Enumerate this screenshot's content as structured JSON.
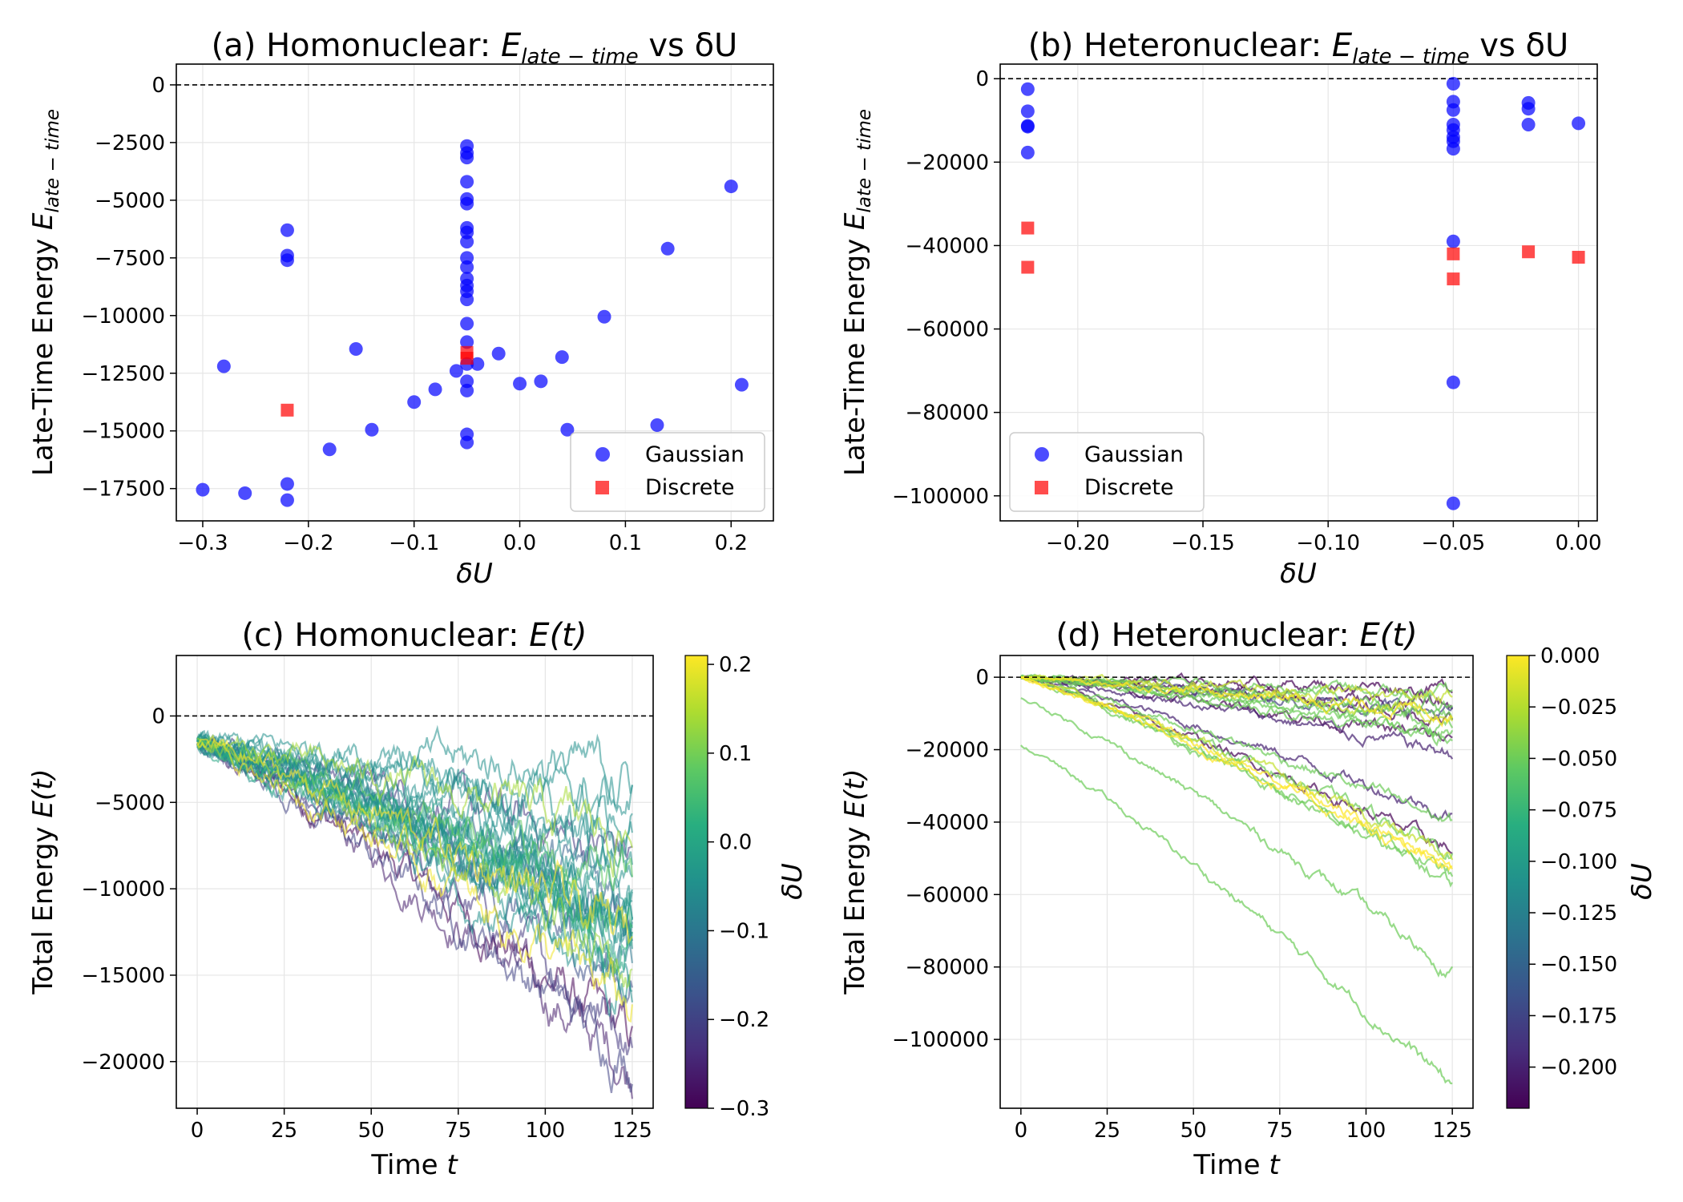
{
  "panels": [
    {
      "id": "a",
      "title_plain": "(a) Homonuclear: ",
      "title_sym": "E",
      "title_sub": "late − time",
      "title_tail": " vs δU",
      "xlabel": "δU",
      "ylabel_plain": "Late-Time Energy ",
      "ylabel_sym": "E",
      "ylabel_sub": "late − time",
      "xlim": [
        -0.325,
        0.24
      ],
      "ylim": [
        -18900,
        900
      ],
      "xticks": [
        -0.3,
        -0.2,
        -0.1,
        0.0,
        0.1,
        0.2
      ],
      "xtick_labels": [
        "−0.3",
        "−0.2",
        "−0.1",
        "0.0",
        "0.1",
        "0.2"
      ],
      "yticks": [
        0,
        -2500,
        -5000,
        -7500,
        -10000,
        -12500,
        -15000,
        -17500
      ],
      "ytick_labels": [
        "0",
        "−2500",
        "−5000",
        "−7500",
        "−10000",
        "−12500",
        "−15000",
        "−17500"
      ],
      "legend": [
        "Gaussian",
        "Discrete"
      ],
      "legend_position": "lower-right"
    },
    {
      "id": "b",
      "title_plain": "(b) Heteronuclear: ",
      "title_sym": "E",
      "title_sub": "late − time",
      "title_tail": " vs δU",
      "xlabel": "δU",
      "ylabel_plain": "Late-Time Energy ",
      "ylabel_sym": "E",
      "ylabel_sub": "late − time",
      "xlim": [
        -0.231,
        0.0075
      ],
      "ylim": [
        -106000,
        3500
      ],
      "xticks": [
        -0.2,
        -0.15,
        -0.1,
        -0.05,
        0.0
      ],
      "xtick_labels": [
        "−0.20",
        "−0.15",
        "−0.10",
        "−0.05",
        "0.00"
      ],
      "yticks": [
        0,
        -20000,
        -40000,
        -60000,
        -80000,
        -100000
      ],
      "ytick_labels": [
        "0",
        "−20000",
        "−40000",
        "−60000",
        "−80000",
        "−100000"
      ],
      "legend": [
        "Gaussian",
        "Discrete"
      ],
      "legend_position": "lower-left"
    },
    {
      "id": "c",
      "title_plain": "(c) Homonuclear: ",
      "title_sym": "E(t)",
      "xlabel_plain": "Time ",
      "xlabel_sym": "t",
      "ylabel_plain": "Total Energy ",
      "ylabel_sym": "E(t)",
      "xlim": [
        -6,
        131
      ],
      "ylim": [
        -22700,
        3500
      ],
      "xticks": [
        0,
        25,
        50,
        75,
        100,
        125
      ],
      "xtick_labels": [
        "0",
        "25",
        "50",
        "75",
        "100",
        "125"
      ],
      "yticks": [
        0,
        -5000,
        -10000,
        -15000,
        -20000
      ],
      "ytick_labels": [
        "0",
        "−5000",
        "−10000",
        "−15000",
        "−20000"
      ],
      "colorbar_label": "δU",
      "colorbar_range": [
        -0.3,
        0.21
      ],
      "colorbar_ticks": [
        0.2,
        0.1,
        0.0,
        -0.1,
        -0.2,
        -0.3
      ],
      "colorbar_tick_labels": [
        "0.2",
        "0.1",
        "0.0",
        "−0.1",
        "−0.2",
        "−0.3"
      ]
    },
    {
      "id": "d",
      "title_plain": "(d) Heteronuclear: ",
      "title_sym": "E(t)",
      "xlabel_plain": "Time ",
      "xlabel_sym": "t",
      "ylabel_plain": "Total Energy ",
      "ylabel_sym": "E(t)",
      "xlim": [
        -6,
        131
      ],
      "ylim": [
        -119000,
        6000
      ],
      "xticks": [
        0,
        25,
        50,
        75,
        100,
        125
      ],
      "xtick_labels": [
        "0",
        "25",
        "50",
        "75",
        "100",
        "125"
      ],
      "yticks": [
        0,
        -20000,
        -40000,
        -60000,
        -80000,
        -100000
      ],
      "ytick_labels": [
        "0",
        "−20000",
        "−40000",
        "−60000",
        "−80000",
        "−100000"
      ],
      "colorbar_label": "δU",
      "colorbar_range": [
        -0.22,
        0.0
      ],
      "colorbar_ticks": [
        0.0,
        -0.025,
        -0.05,
        -0.075,
        -0.1,
        -0.125,
        -0.15,
        -0.175,
        -0.2
      ],
      "colorbar_tick_labels": [
        "0.000",
        "−0.025",
        "−0.050",
        "−0.075",
        "−0.100",
        "−0.125",
        "−0.150",
        "−0.175",
        "−0.200"
      ]
    }
  ],
  "colors": {
    "gaussian": "#0000ff",
    "discrete": "#ff0000",
    "zero_line": "#000000",
    "grid": "#e6e6e6"
  },
  "chart_data": [
    {
      "type": "scatter",
      "panel": "a",
      "title": "(a) Homonuclear: E_late-time vs δU",
      "xlabel": "δU",
      "ylabel": "Late-Time Energy E_late-time",
      "series": [
        {
          "name": "Gaussian",
          "points": [
            [
              -0.3,
              -17550
            ],
            [
              -0.28,
              -12200
            ],
            [
              -0.26,
              -17700
            ],
            [
              -0.22,
              -6300
            ],
            [
              -0.22,
              -7400
            ],
            [
              -0.22,
              -7600
            ],
            [
              -0.22,
              -17300
            ],
            [
              -0.22,
              -18000
            ],
            [
              -0.18,
              -15800
            ],
            [
              -0.155,
              -11450
            ],
            [
              -0.14,
              -14950
            ],
            [
              -0.1,
              -13750
            ],
            [
              -0.08,
              -13200
            ],
            [
              -0.06,
              -12400
            ],
            [
              -0.05,
              -2650
            ],
            [
              -0.05,
              -2950
            ],
            [
              -0.05,
              -3150
            ],
            [
              -0.05,
              -4200
            ],
            [
              -0.05,
              -4950
            ],
            [
              -0.05,
              -5150
            ],
            [
              -0.05,
              -6200
            ],
            [
              -0.05,
              -6400
            ],
            [
              -0.05,
              -6800
            ],
            [
              -0.05,
              -7500
            ],
            [
              -0.05,
              -7900
            ],
            [
              -0.05,
              -8400
            ],
            [
              -0.05,
              -8700
            ],
            [
              -0.05,
              -8950
            ],
            [
              -0.05,
              -9300
            ],
            [
              -0.05,
              -10350
            ],
            [
              -0.05,
              -11150
            ],
            [
              -0.05,
              -12100
            ],
            [
              -0.05,
              -12850
            ],
            [
              -0.05,
              -13250
            ],
            [
              -0.05,
              -15150
            ],
            [
              -0.05,
              -15500
            ],
            [
              -0.04,
              -12100
            ],
            [
              -0.02,
              -11650
            ],
            [
              0.0,
              -12950
            ],
            [
              0.02,
              -12850
            ],
            [
              0.04,
              -11800
            ],
            [
              0.045,
              -14950
            ],
            [
              0.08,
              -10050
            ],
            [
              0.13,
              -14750
            ],
            [
              0.14,
              -7100
            ],
            [
              0.2,
              -4400
            ],
            [
              0.21,
              -13000
            ]
          ]
        },
        {
          "name": "Discrete",
          "points": [
            [
              -0.22,
              -14100
            ],
            [
              -0.05,
              -11600
            ],
            [
              -0.05,
              -11850
            ]
          ]
        }
      ]
    },
    {
      "type": "scatter",
      "panel": "b",
      "title": "(b) Heteronuclear: E_late-time vs δU",
      "xlabel": "δU",
      "ylabel": "Late-Time Energy E_late-time",
      "series": [
        {
          "name": "Gaussian",
          "points": [
            [
              -0.22,
              -2500
            ],
            [
              -0.22,
              -7800
            ],
            [
              -0.22,
              -11300
            ],
            [
              -0.22,
              -11500
            ],
            [
              -0.22,
              -17700
            ],
            [
              -0.05,
              -1200
            ],
            [
              -0.05,
              -5500
            ],
            [
              -0.05,
              -7500
            ],
            [
              -0.05,
              -11000
            ],
            [
              -0.05,
              -12300
            ],
            [
              -0.05,
              -14000
            ],
            [
              -0.05,
              -15000
            ],
            [
              -0.05,
              -16800
            ],
            [
              -0.05,
              -39000
            ],
            [
              -0.05,
              -72800
            ],
            [
              -0.05,
              -101800
            ],
            [
              -0.02,
              -5800
            ],
            [
              -0.02,
              -7200
            ],
            [
              -0.02,
              -11000
            ],
            [
              0.0,
              -10700
            ]
          ]
        },
        {
          "name": "Discrete",
          "points": [
            [
              -0.22,
              -35800
            ],
            [
              -0.22,
              -45200
            ],
            [
              -0.05,
              -42000
            ],
            [
              -0.05,
              -48000
            ],
            [
              -0.02,
              -41500
            ],
            [
              0.0,
              -42800
            ]
          ]
        }
      ]
    },
    {
      "type": "line",
      "panel": "c",
      "title": "(c) Homonuclear: E(t)",
      "xlabel": "Time t",
      "ylabel": "Total Energy E(t)",
      "x_range": [
        0,
        125
      ],
      "color_by": "δU",
      "series": [
        {
          "du": -0.3,
          "end": -19000
        },
        {
          "du": -0.26,
          "end": -20500
        },
        {
          "du": -0.22,
          "end": -18000
        },
        {
          "du": -0.22,
          "end": -8000
        },
        {
          "du": -0.2,
          "end": -20000
        },
        {
          "du": -0.18,
          "end": -15500
        },
        {
          "du": -0.15,
          "end": -12000
        },
        {
          "du": -0.14,
          "end": -10500
        },
        {
          "du": -0.1,
          "end": -14000
        },
        {
          "du": -0.08,
          "end": -13000
        },
        {
          "du": -0.06,
          "end": -12500
        },
        {
          "du": -0.05,
          "end": -3500
        },
        {
          "du": -0.05,
          "end": -5000
        },
        {
          "du": -0.05,
          "end": -6500
        },
        {
          "du": -0.05,
          "end": -7500
        },
        {
          "du": -0.05,
          "end": -8500
        },
        {
          "du": -0.05,
          "end": -9500
        },
        {
          "du": -0.05,
          "end": -10500
        },
        {
          "du": -0.05,
          "end": -11500
        },
        {
          "du": -0.05,
          "end": -12500
        },
        {
          "du": -0.05,
          "end": -13500
        },
        {
          "du": -0.05,
          "end": -15000
        },
        {
          "du": -0.05,
          "end": -16500
        },
        {
          "du": -0.04,
          "end": -12000
        },
        {
          "du": -0.02,
          "end": -11500
        },
        {
          "du": 0.0,
          "end": -13000
        },
        {
          "du": 0.02,
          "end": -12800
        },
        {
          "du": 0.04,
          "end": -12000
        },
        {
          "du": 0.08,
          "end": -10000
        },
        {
          "du": 0.13,
          "end": -15000
        },
        {
          "du": 0.14,
          "end": -7000
        },
        {
          "du": 0.2,
          "end": -17000
        },
        {
          "du": 0.21,
          "end": -13000
        }
      ]
    },
    {
      "type": "line",
      "panel": "d",
      "title": "(d) Heteronuclear: E(t)",
      "xlabel": "Time t",
      "ylabel": "Total Energy E(t)",
      "x_range": [
        0,
        125
      ],
      "color_by": "δU",
      "series": [
        {
          "du": -0.22,
          "start": 0,
          "end": -3000
        },
        {
          "du": -0.22,
          "start": 0,
          "end": -8000
        },
        {
          "du": -0.22,
          "start": 0,
          "end": -11500
        },
        {
          "du": -0.22,
          "start": 0,
          "end": -17500
        },
        {
          "du": -0.22,
          "start": 0,
          "end": -48000
        },
        {
          "du": -0.2,
          "start": 0,
          "end": -21000
        },
        {
          "du": -0.2,
          "start": 0,
          "end": -38000
        },
        {
          "du": -0.18,
          "start": 0,
          "end": -10000
        },
        {
          "du": -0.05,
          "start": 0,
          "end": -5000
        },
        {
          "du": -0.05,
          "start": 0,
          "end": -8000
        },
        {
          "du": -0.05,
          "start": 0,
          "end": -11000
        },
        {
          "du": -0.05,
          "start": 0,
          "end": -13000
        },
        {
          "du": -0.05,
          "start": 0,
          "end": -15000
        },
        {
          "du": -0.05,
          "start": 0,
          "end": -17000
        },
        {
          "du": -0.05,
          "start": 0,
          "end": -40000
        },
        {
          "du": -0.05,
          "start": 0,
          "end": -48000
        },
        {
          "du": -0.05,
          "start": 0,
          "end": -55000
        },
        {
          "du": -0.05,
          "start": 0,
          "end": -57000
        },
        {
          "du": -0.05,
          "start": -6000,
          "end": -81000
        },
        {
          "du": -0.05,
          "start": -19000,
          "end": -113000
        },
        {
          "du": -0.02,
          "start": 0,
          "end": -6000
        },
        {
          "du": -0.02,
          "start": 0,
          "end": -10000
        },
        {
          "du": -0.02,
          "start": 0,
          "end": -50000
        },
        {
          "du": 0.0,
          "start": 0,
          "end": -10000
        },
        {
          "du": 0.0,
          "start": 0,
          "end": -52000
        },
        {
          "du": 0.0,
          "start": 0,
          "end": -54000
        }
      ]
    }
  ]
}
